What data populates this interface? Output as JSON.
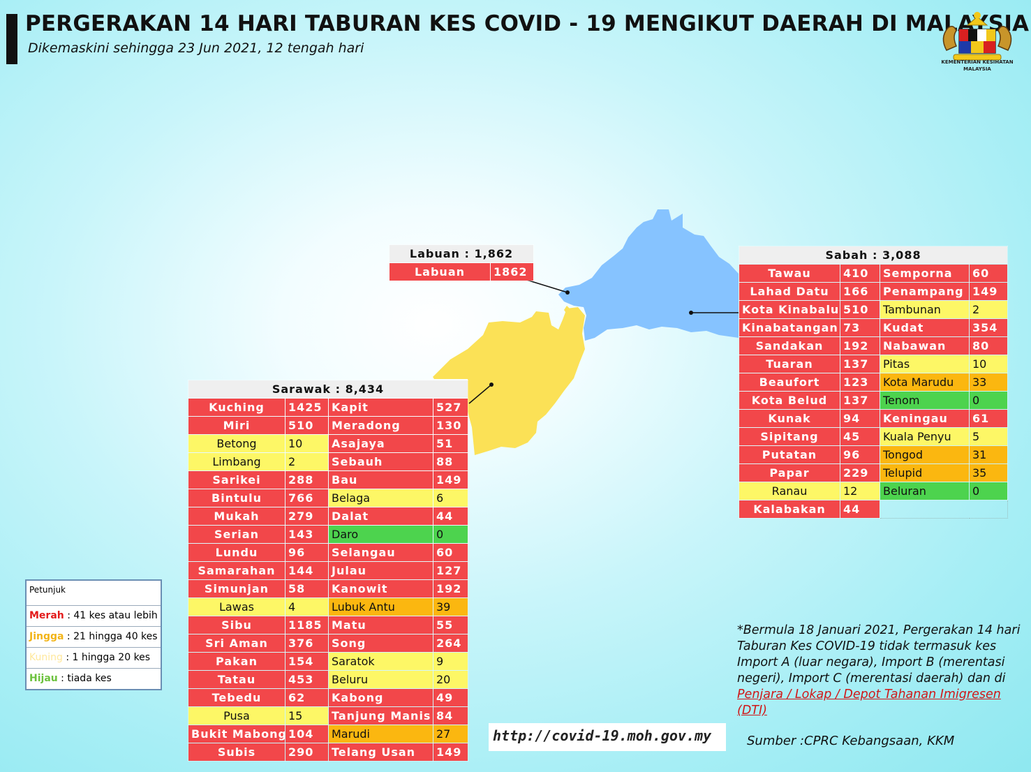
{
  "header": {
    "title": "PERGERAKAN 14 HARI TABURAN KES COVID - 19 MENGIKUT DAERAH DI MALAYSIA",
    "subtitle": "Dikemaskini sehingga 23 Jun 2021, 12 tengah hari",
    "logo_text": "KEMENTERIAN KESIHATAN MALAYSIA"
  },
  "colors": {
    "red": "#f2474a",
    "orange": "#fbb710",
    "yellow": "#fdf766",
    "green": "#4dd34e",
    "sabah_map": "#86c3ff",
    "sarawak_map": "#fbe156",
    "labuan_map": "#fbe156"
  },
  "labuan": {
    "header": "Labuan : 1,862",
    "rows": [
      {
        "name": "Labuan",
        "value": "1862",
        "level": "red"
      }
    ]
  },
  "sabah": {
    "header": "Sabah : 3,088",
    "rows": [
      [
        {
          "name": "Tawau",
          "value": "410",
          "level": "red"
        },
        {
          "name": "Semporna",
          "value": "60",
          "level": "red"
        }
      ],
      [
        {
          "name": "Lahad Datu",
          "value": "166",
          "level": "red"
        },
        {
          "name": "Penampang",
          "value": "149",
          "level": "red"
        }
      ],
      [
        {
          "name": "Kota Kinabalu",
          "value": "510",
          "level": "red"
        },
        {
          "name": "Tambunan",
          "value": "2",
          "level": "yellow"
        }
      ],
      [
        {
          "name": "Kinabatangan",
          "value": "73",
          "level": "red"
        },
        {
          "name": "Kudat",
          "value": "354",
          "level": "red"
        }
      ],
      [
        {
          "name": "Sandakan",
          "value": "192",
          "level": "red"
        },
        {
          "name": "Nabawan",
          "value": "80",
          "level": "red"
        }
      ],
      [
        {
          "name": "Tuaran",
          "value": "137",
          "level": "red"
        },
        {
          "name": "Pitas",
          "value": "10",
          "level": "yellow"
        }
      ],
      [
        {
          "name": "Beaufort",
          "value": "123",
          "level": "red"
        },
        {
          "name": "Kota Marudu",
          "value": "33",
          "level": "orange"
        }
      ],
      [
        {
          "name": "Kota Belud",
          "value": "137",
          "level": "red"
        },
        {
          "name": "Tenom",
          "value": "0",
          "level": "green"
        }
      ],
      [
        {
          "name": "Kunak",
          "value": "94",
          "level": "red"
        },
        {
          "name": "Keningau",
          "value": "61",
          "level": "red"
        }
      ],
      [
        {
          "name": "Sipitang",
          "value": "45",
          "level": "red"
        },
        {
          "name": "Kuala Penyu",
          "value": "5",
          "level": "yellow"
        }
      ],
      [
        {
          "name": "Putatan",
          "value": "96",
          "level": "red"
        },
        {
          "name": "Tongod",
          "value": "31",
          "level": "orange"
        }
      ],
      [
        {
          "name": "Papar",
          "value": "229",
          "level": "red"
        },
        {
          "name": "Telupid",
          "value": "35",
          "level": "orange"
        }
      ],
      [
        {
          "name": "Ranau",
          "value": "12",
          "level": "yellow"
        },
        {
          "name": "Beluran",
          "value": "0",
          "level": "green"
        }
      ],
      [
        {
          "name": "Kalabakan",
          "value": "44",
          "level": "red"
        },
        null
      ]
    ]
  },
  "sarawak": {
    "header": "Sarawak : 8,434",
    "rows": [
      [
        {
          "name": "Kuching",
          "value": "1425",
          "level": "red"
        },
        {
          "name": "Kapit",
          "value": "527",
          "level": "red"
        }
      ],
      [
        {
          "name": "Miri",
          "value": "510",
          "level": "red"
        },
        {
          "name": "Meradong",
          "value": "130",
          "level": "red"
        }
      ],
      [
        {
          "name": "Betong",
          "value": "10",
          "level": "yellow"
        },
        {
          "name": "Asajaya",
          "value": "51",
          "level": "red"
        }
      ],
      [
        {
          "name": "Limbang",
          "value": "2",
          "level": "yellow"
        },
        {
          "name": "Sebauh",
          "value": "88",
          "level": "red"
        }
      ],
      [
        {
          "name": "Sarikei",
          "value": "288",
          "level": "red"
        },
        {
          "name": "Bau",
          "value": "149",
          "level": "red"
        }
      ],
      [
        {
          "name": "Bintulu",
          "value": "766",
          "level": "red"
        },
        {
          "name": "Belaga",
          "value": "6",
          "level": "yellow"
        }
      ],
      [
        {
          "name": "Mukah",
          "value": "279",
          "level": "red"
        },
        {
          "name": "Dalat",
          "value": "44",
          "level": "red"
        }
      ],
      [
        {
          "name": "Serian",
          "value": "143",
          "level": "red"
        },
        {
          "name": "Daro",
          "value": "0",
          "level": "green"
        }
      ],
      [
        {
          "name": "Lundu",
          "value": "96",
          "level": "red"
        },
        {
          "name": "Selangau",
          "value": "60",
          "level": "red"
        }
      ],
      [
        {
          "name": "Samarahan",
          "value": "144",
          "level": "red"
        },
        {
          "name": "Julau",
          "value": "127",
          "level": "red"
        }
      ],
      [
        {
          "name": "Simunjan",
          "value": "58",
          "level": "red"
        },
        {
          "name": "Kanowit",
          "value": "192",
          "level": "red"
        }
      ],
      [
        {
          "name": "Lawas",
          "value": "4",
          "level": "yellow"
        },
        {
          "name": "Lubuk Antu",
          "value": "39",
          "level": "orange"
        }
      ],
      [
        {
          "name": "Sibu",
          "value": "1185",
          "level": "red"
        },
        {
          "name": "Matu",
          "value": "55",
          "level": "red"
        }
      ],
      [
        {
          "name": "Sri Aman",
          "value": "376",
          "level": "red"
        },
        {
          "name": "Song",
          "value": "264",
          "level": "red"
        }
      ],
      [
        {
          "name": "Pakan",
          "value": "154",
          "level": "red"
        },
        {
          "name": "Saratok",
          "value": "9",
          "level": "yellow"
        }
      ],
      [
        {
          "name": "Tatau",
          "value": "453",
          "level": "red"
        },
        {
          "name": "Beluru",
          "value": "20",
          "level": "yellow"
        }
      ],
      [
        {
          "name": "Tebedu",
          "value": "62",
          "level": "red"
        },
        {
          "name": "Kabong",
          "value": "49",
          "level": "red"
        }
      ],
      [
        {
          "name": "Pusa",
          "value": "15",
          "level": "yellow"
        },
        {
          "name": "Tanjung Manis",
          "value": "84",
          "level": "red"
        }
      ],
      [
        {
          "name": "Bukit Mabong",
          "value": "104",
          "level": "red"
        },
        {
          "name": "Marudi",
          "value": "27",
          "level": "orange"
        }
      ],
      [
        {
          "name": "Subis",
          "value": "290",
          "level": "red"
        },
        {
          "name": "Telang Usan",
          "value": "149",
          "level": "red"
        }
      ]
    ]
  },
  "legend": {
    "title": "Petunjuk",
    "items": [
      {
        "key": "Merah",
        "text": " : 41 kes atau lebih"
      },
      {
        "key": "Jingga",
        "text": " : 21 hingga 40 kes"
      },
      {
        "key": "Kuning",
        "text": " : 1 hingga 20 kes"
      },
      {
        "key": "Hijau",
        "text": " : tiada kes"
      }
    ]
  },
  "footer": {
    "url": "http://covid-19.moh.gov.my",
    "note": "*Bermula 18 Januari 2021, Pergerakan 14 hari Taburan Kes COVID-19 tidak termasuk kes Import A (luar negara), Import B (merentasi negeri), Import C (merentasi daerah) dan di ",
    "note_link": "Penjara / Lokap / Depot Tahanan Imigresen (DTI)",
    "source": "Sumber :CPRC Kebangsaan,  KKM"
  }
}
